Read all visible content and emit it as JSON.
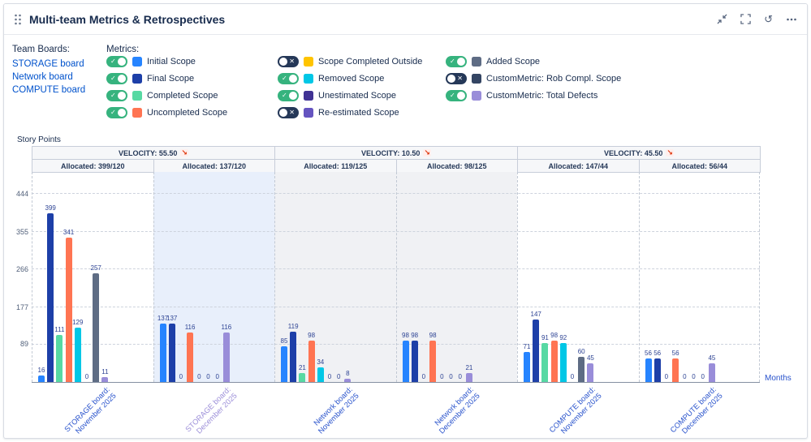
{
  "header": {
    "title": "Multi-team Metrics & Retrospectives"
  },
  "sidebar": {
    "team_boards_label": "Team Boards:",
    "boards": [
      "STORAGE board",
      "Network board",
      "COMPUTE board"
    ]
  },
  "legend": {
    "metrics_label": "Metrics:",
    "columns": [
      [
        {
          "label": "Initial Scope",
          "color": "#2684FF",
          "enabled": true
        },
        {
          "label": "Final Scope",
          "color": "#1D3FA8",
          "enabled": true
        },
        {
          "label": "Completed Scope",
          "color": "#57D9A3",
          "enabled": true
        },
        {
          "label": "Uncompleted Scope",
          "color": "#FF7452",
          "enabled": true
        }
      ],
      [
        {
          "label": "Scope Completed Outside",
          "color": "#FFC400",
          "enabled": false
        },
        {
          "label": "Removed Scope",
          "color": "#00C7E6",
          "enabled": true
        },
        {
          "label": "Unestimated Scope",
          "color": "#403294",
          "enabled": true
        },
        {
          "label": "Re-estimated Scope",
          "color": "#6554C0",
          "enabled": false
        }
      ],
      [
        {
          "label": "Added Scope",
          "color": "#5E6C84",
          "enabled": true
        },
        {
          "label": "CustomMetric: Rob Compl. Scope",
          "color": "#344563",
          "enabled": false
        },
        {
          "label": "CustomMetric: Total Defects",
          "color": "#998DD9",
          "enabled": true
        }
      ]
    ]
  },
  "chart_data": {
    "type": "bar",
    "title": "Multi-team Metrics & Retrospectives",
    "ylabel": "Story Points",
    "xlabel": "Months",
    "yticks": [
      89,
      177,
      266,
      355,
      444
    ],
    "ylim": [
      0,
      475
    ],
    "grid": "dashed",
    "velocity": [
      {
        "label": "VELOCITY: 55.50",
        "trend": "down"
      },
      {
        "label": "VELOCITY: 10.50",
        "trend": "down"
      },
      {
        "label": "VELOCITY: 45.50",
        "trend": "down"
      }
    ],
    "groups": [
      {
        "label": "STORAGE board: November 2025",
        "allocated": "Allocated: 399/120",
        "highlight": null
      },
      {
        "label": "STORAGE board: December 2025",
        "allocated": "Allocated: 137/120",
        "highlight": "selected"
      },
      {
        "label": "Network board: November 2025",
        "allocated": "Allocated: 119/125",
        "highlight": "alt"
      },
      {
        "label": "Network board: December 2025",
        "allocated": "Allocated: 98/125",
        "highlight": "alt"
      },
      {
        "label": "COMPUTE board: November 2025",
        "allocated": "Allocated: 147/44",
        "highlight": null
      },
      {
        "label": "COMPUTE board: December 2025",
        "allocated": "Allocated: 56/44",
        "highlight": null
      }
    ],
    "series": [
      {
        "name": "Initial Scope",
        "color": "#2684FF",
        "values": [
          16,
          137,
          85,
          98,
          71,
          56
        ]
      },
      {
        "name": "Final Scope",
        "color": "#1D3FA8",
        "values": [
          399,
          137,
          119,
          98,
          147,
          56
        ]
      },
      {
        "name": "Completed Scope",
        "color": "#57D9A3",
        "values": [
          111,
          0,
          21,
          0,
          91,
          0
        ]
      },
      {
        "name": "Uncompleted Scope",
        "color": "#FF7452",
        "values": [
          341,
          116,
          98,
          98,
          98,
          56
        ]
      },
      {
        "name": "Removed Scope",
        "color": "#00C7E6",
        "values": [
          129,
          0,
          34,
          0,
          92,
          0
        ]
      },
      {
        "name": "Unestimated Scope",
        "color": "#403294",
        "values": [
          0,
          0,
          0,
          0,
          0,
          0
        ]
      },
      {
        "name": "Added Scope",
        "color": "#5E6C84",
        "values": [
          257,
          0,
          0,
          0,
          60,
          0
        ]
      },
      {
        "name": "CustomMetric: Total Defects",
        "color": "#998DD9",
        "values": [
          11,
          116,
          8,
          21,
          45,
          45
        ]
      }
    ]
  }
}
